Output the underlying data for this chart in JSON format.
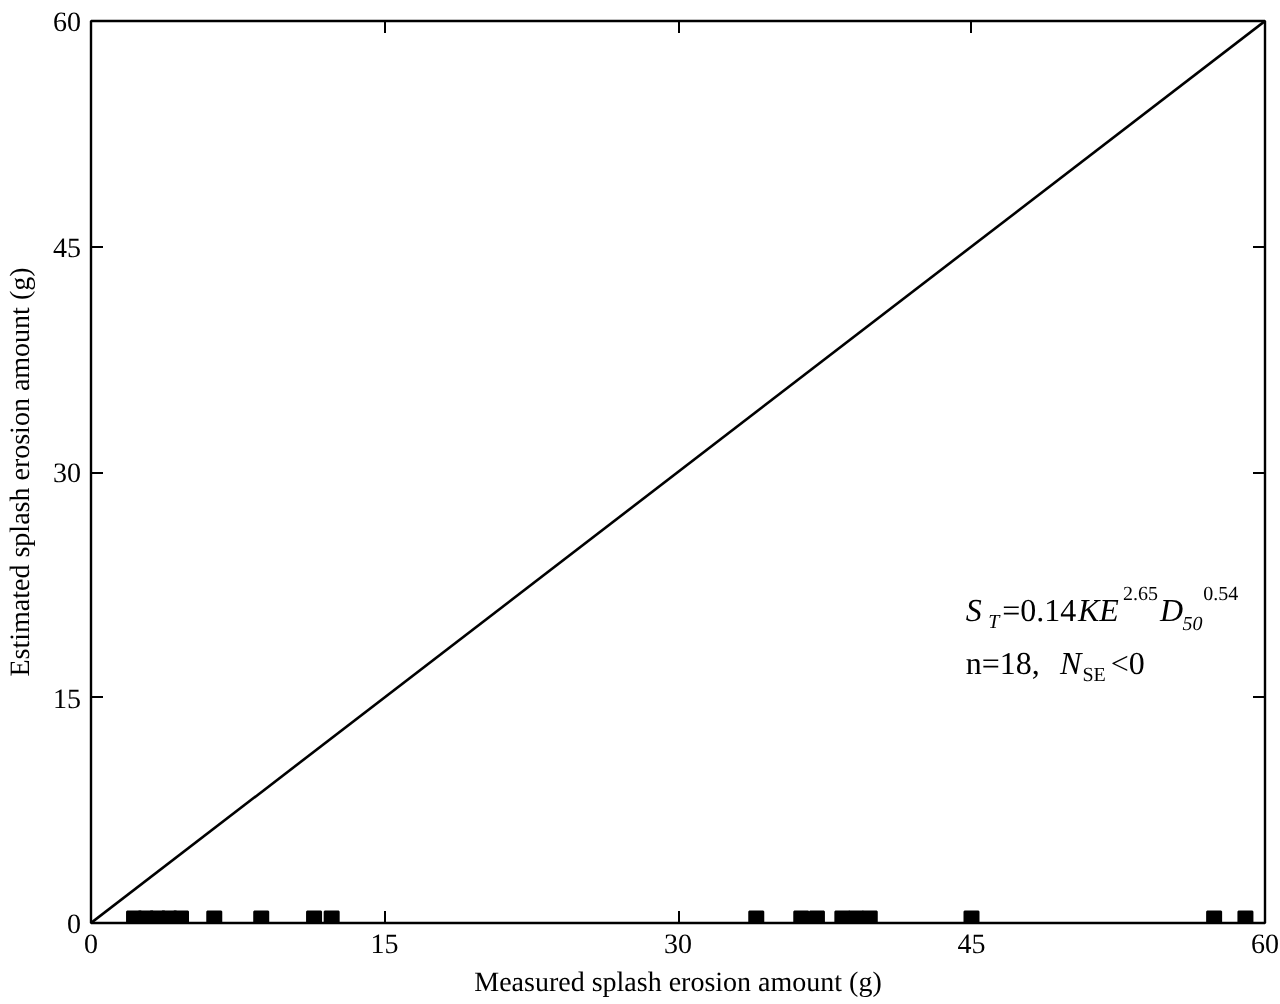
{
  "chart_data": {
    "type": "scatter",
    "xlabel": "Measured splash erosion amount (g)",
    "ylabel": "Estimated splash erosion amount (g)",
    "xlim": [
      0,
      60
    ],
    "ylim": [
      0,
      60
    ],
    "xticks": [
      0,
      15,
      30,
      45,
      60
    ],
    "yticks": [
      0,
      15,
      30,
      45,
      60
    ],
    "grid": false,
    "series": [
      {
        "marker": "square",
        "color": "#000000",
        "x": [
          2.2,
          2.8,
          3.4,
          4.0,
          4.6,
          6.3,
          8.7,
          11.4,
          12.3,
          34.0,
          36.3,
          37.1,
          38.4,
          39.1,
          39.8,
          45.0,
          57.4,
          59.0
        ],
        "values": [
          0.3,
          0.3,
          0.3,
          0.3,
          0.3,
          0.3,
          0.3,
          0.3,
          0.3,
          0.3,
          0.3,
          0.3,
          0.3,
          0.3,
          0.3,
          0.3,
          0.3,
          0.3
        ]
      },
      {
        "type": "line",
        "color": "#000000",
        "x": [
          0,
          60
        ],
        "values": [
          0,
          60
        ]
      }
    ],
    "annotations": [
      "S$_{T}$=0.14KE$^{2.65}$D$_{50}$$^{0.54}$",
      "n=18,  N$_{SE}$<0"
    ]
  }
}
